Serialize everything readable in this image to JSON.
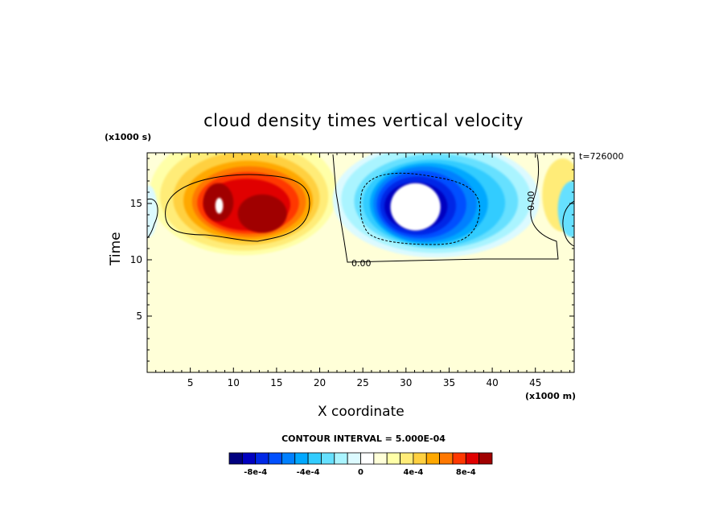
{
  "chart_data": {
    "type": "heatmap",
    "title": "cloud density times vertical velocity",
    "xlabel": "X coordinate",
    "ylabel": "Time",
    "x_unit": "(x1000 m)",
    "y_unit": "(x1000 s)",
    "xlim": [
      0,
      49.5
    ],
    "ylim": [
      0,
      19.5
    ],
    "x_ticks": [
      5,
      10,
      15,
      20,
      25,
      30,
      35,
      40,
      45
    ],
    "y_ticks": [
      5,
      10,
      15
    ],
    "x_tick_labels": [
      "5",
      "10",
      "15",
      "20",
      "25",
      "30",
      "35",
      "40",
      "45"
    ],
    "y_tick_labels": [
      "5",
      "10",
      "15"
    ],
    "time_stamp": "t=726000",
    "contour_interval_text": "CONTOUR INTERVAL = 5.000E-04",
    "contour_label": "0.00",
    "colorbar": {
      "colors": [
        "#00007f",
        "#0000c0",
        "#0028e6",
        "#0050ff",
        "#0080ff",
        "#00a8ff",
        "#33ccff",
        "#66e0ff",
        "#aaf4ff",
        "#dcfaff",
        "#ffffff",
        "#ffffd8",
        "#ffffa8",
        "#ffec78",
        "#ffd040",
        "#ffa800",
        "#ff7800",
        "#ff3800",
        "#e00000",
        "#a00000"
      ],
      "ticks": [
        "-8e-4",
        "-4e-4",
        "0",
        "4e-4",
        "8e-4"
      ],
      "tick_values": [
        -0.0008,
        -0.0004,
        0,
        0.0004,
        0.0008
      ]
    },
    "features": [
      {
        "sign": "positive",
        "x_center": 12.5,
        "y_center": 14.5,
        "x_extent": [
          1,
          21.5
        ],
        "y_extent": [
          10.5,
          19.5
        ],
        "peak": 0.001
      },
      {
        "sign": "negative",
        "x_center": 31,
        "y_center": 15,
        "x_extent": [
          21.5,
          45
        ],
        "y_extent": [
          10,
          19.5
        ],
        "peak": -0.001
      },
      {
        "sign": "positive_weak",
        "x_center": 47.5,
        "y_center": 16,
        "x_extent": [
          45.5,
          49.5
        ],
        "y_extent": [
          13,
          19
        ]
      },
      {
        "sign": "negative_weak",
        "x_center": 49,
        "y_center": 14.5,
        "x_extent": [
          47.5,
          49.5
        ],
        "y_extent": [
          12,
          17
        ]
      }
    ]
  }
}
